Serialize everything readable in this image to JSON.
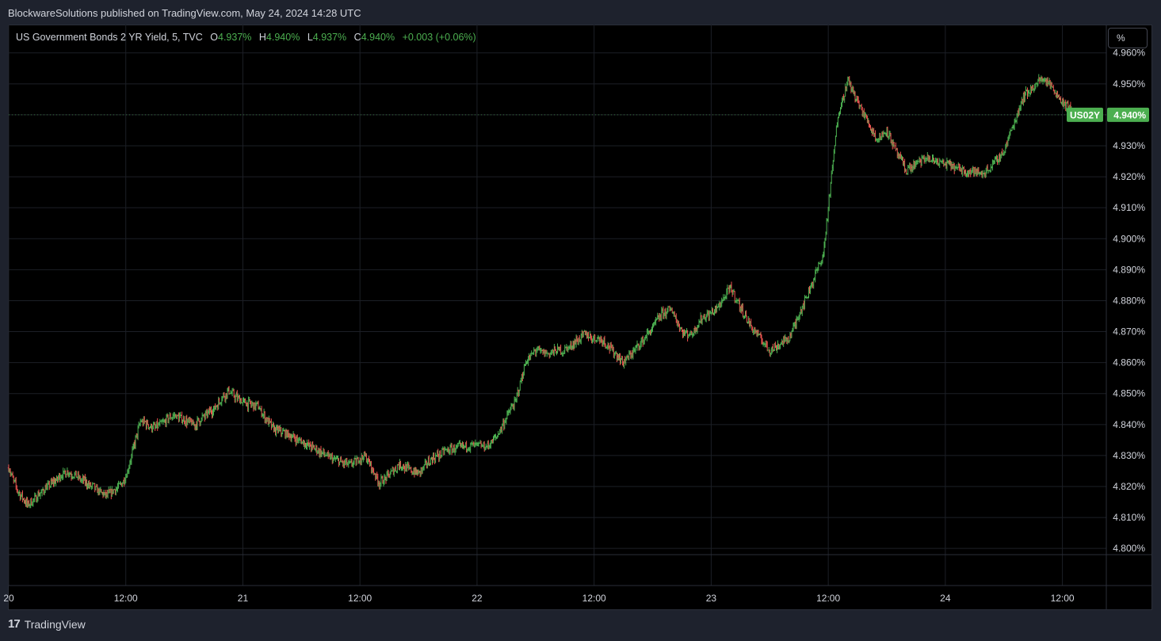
{
  "header": {
    "published": "BlockwareSolutions published on TradingView.com, May 24, 2024 14:28 UTC"
  },
  "legend": {
    "title": "US Government Bonds 2 YR Yield, 5, TVC",
    "o_label": "O",
    "o_value": "4.937%",
    "h_label": "H",
    "h_value": "4.940%",
    "l_label": "L",
    "l_value": "4.937%",
    "c_label": "C",
    "c_value": "4.940%",
    "change": "+0.003 (+0.06%)"
  },
  "scale_button": "%",
  "price_tag": {
    "symbol": "US02Y",
    "value": "4.940%"
  },
  "footer": {
    "logo_glyph": "17",
    "brand": "TradingView"
  },
  "colors": {
    "up": "#4caf50",
    "down": "#ef5350",
    "grid": "#1c1f26",
    "background": "#000000",
    "tag": "#4caf50"
  },
  "chart_data": {
    "type": "line",
    "subtype": "ohlc-bars",
    "interval": "5 minute",
    "ylim": [
      4.798,
      4.963
    ],
    "y_ticks": [
      "4.800%",
      "4.810%",
      "4.820%",
      "4.830%",
      "4.840%",
      "4.850%",
      "4.860%",
      "4.870%",
      "4.880%",
      "4.890%",
      "4.900%",
      "4.910%",
      "4.920%",
      "4.930%",
      "4.940%",
      "4.950%",
      "4.960%"
    ],
    "x_ticks": [
      "20",
      "12:00",
      "21",
      "12:00",
      "22",
      "12:00",
      "23",
      "12:00",
      "24",
      "12:00"
    ],
    "x_tick_time": [
      0,
      12,
      24,
      36,
      48,
      60,
      72,
      84,
      96,
      108
    ],
    "xlim": [
      0,
      112.5
    ],
    "series": [
      {
        "x": [
          0,
          1,
          2,
          4,
          6,
          8,
          10,
          11,
          12,
          13.5,
          15,
          17,
          19,
          21,
          22.5,
          24,
          25.5,
          27,
          29,
          31,
          33,
          35,
          36.5,
          38,
          40,
          42,
          43,
          45,
          47,
          49,
          50,
          52,
          53,
          54,
          55,
          57,
          59,
          61,
          63,
          65,
          67,
          68,
          69,
          70,
          71,
          72.5,
          74,
          76,
          78,
          80,
          82,
          83.5,
          85,
          86,
          87,
          88,
          89,
          90,
          91,
          92,
          94,
          96,
          98,
          100,
          102,
          104,
          106,
          107,
          108,
          109.5,
          111
        ],
        "y": [
          4.826,
          4.818,
          4.814,
          4.82,
          4.825,
          4.821,
          4.817,
          4.819,
          4.823,
          4.841,
          4.839,
          4.843,
          4.84,
          4.845,
          4.851,
          4.847,
          4.846,
          4.839,
          4.836,
          4.833,
          4.829,
          4.827,
          4.83,
          4.821,
          4.827,
          4.824,
          4.828,
          4.832,
          4.833,
          4.833,
          4.836,
          4.848,
          4.86,
          4.864,
          4.863,
          4.864,
          4.869,
          4.867,
          4.86,
          4.867,
          4.876,
          4.877,
          4.87,
          4.869,
          4.874,
          4.877,
          4.884,
          4.872,
          4.864,
          4.868,
          4.883,
          4.895,
          4.94,
          4.951,
          4.944,
          4.938,
          4.932,
          4.935,
          4.928,
          4.922,
          4.926,
          4.924,
          4.922,
          4.921,
          4.928,
          4.946,
          4.952,
          4.949,
          4.944,
          4.94,
          4.94
        ]
      }
    ]
  }
}
